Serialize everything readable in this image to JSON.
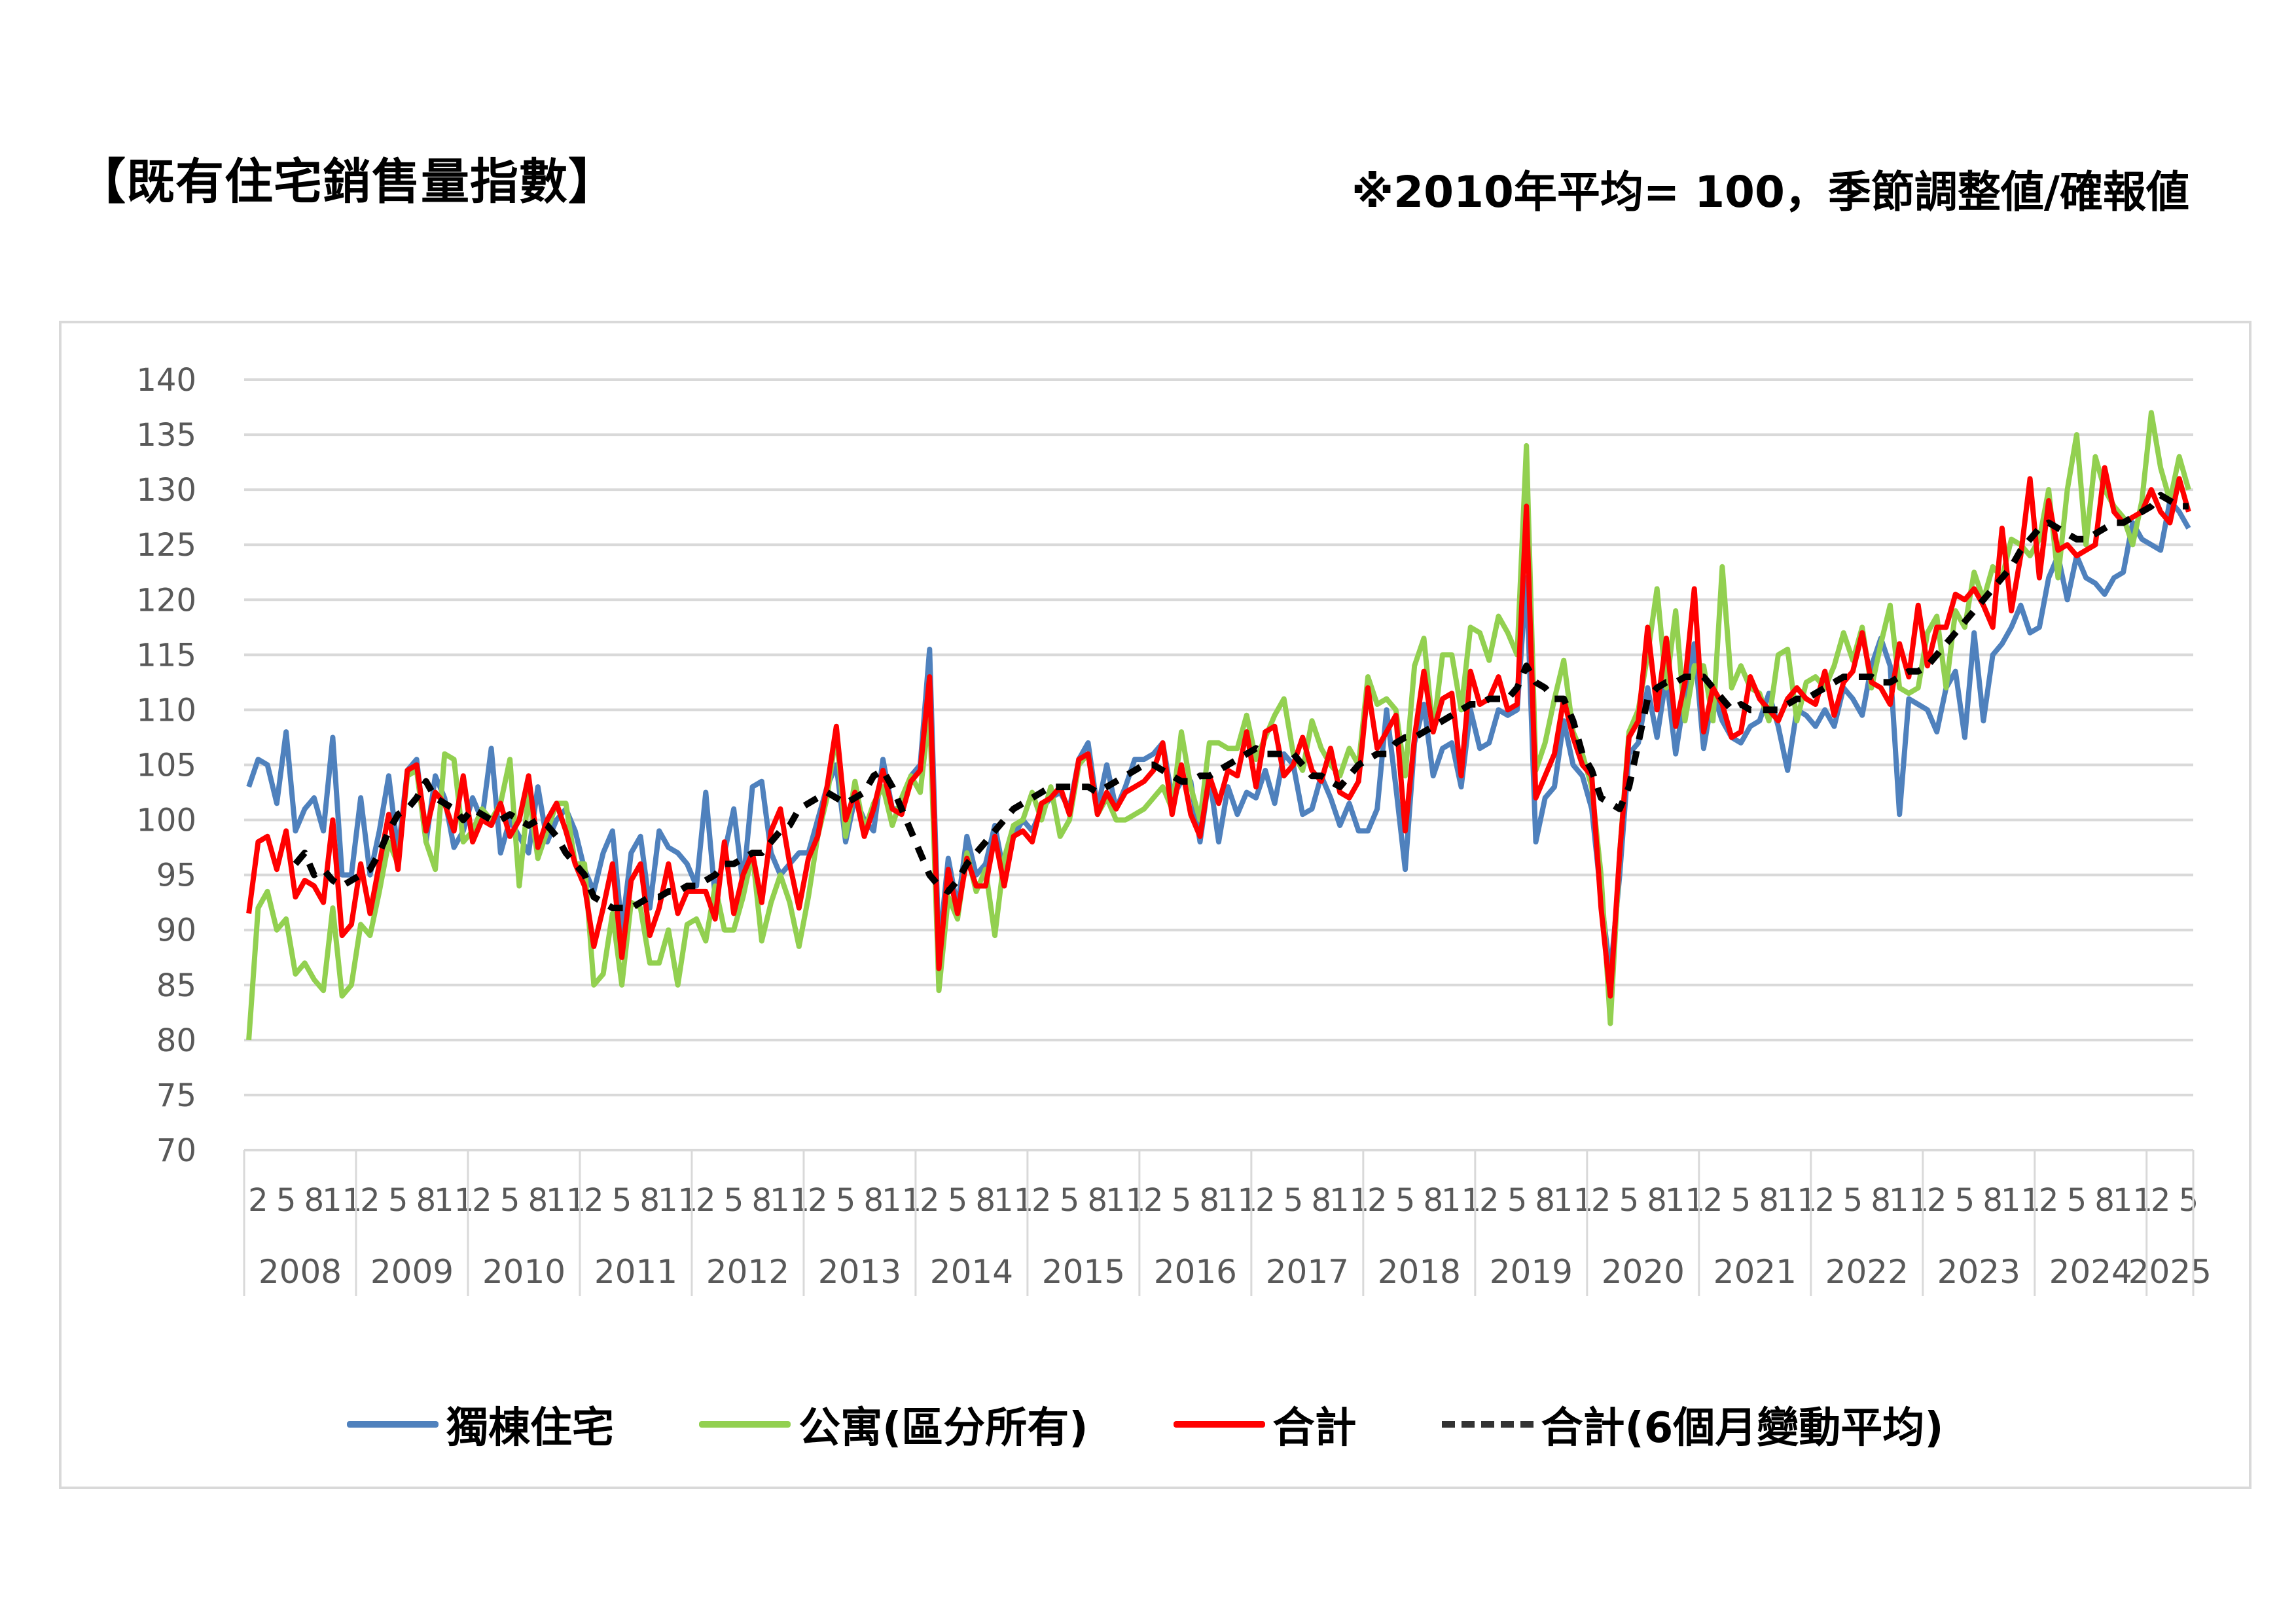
{
  "header": {
    "title": "【既有住宅銷售量指數】",
    "note": "※2010年平均= 100，季節調整値/確報値"
  },
  "chart_data": {
    "type": "line",
    "title": "既有住宅銷售量指數",
    "xlabel": "",
    "ylabel": "",
    "ylim": [
      70,
      140
    ],
    "ystep": 5,
    "grid": true,
    "legend_position": "bottom",
    "start": "2008-01",
    "end": "2025-05",
    "month_tick_labels": [
      2,
      5,
      8,
      11
    ],
    "years": [
      "2008",
      "2009",
      "2010",
      "2011",
      "2012",
      "2013",
      "2014",
      "2015",
      "2016",
      "2017",
      "2018",
      "2019",
      "2020",
      "2021",
      "2022",
      "2023",
      "2024",
      "2025"
    ],
    "series": [
      {
        "name": "獨棟住宅",
        "color": "#4f81bd",
        "dashed": false,
        "values": [
          103,
          105.5,
          105,
          101.5,
          108,
          99,
          101,
          102,
          99,
          107.5,
          95,
          95,
          102,
          95,
          99,
          104,
          97,
          104.5,
          105.5,
          98,
          104,
          102,
          97.5,
          99,
          102,
          100,
          106.5,
          97,
          100,
          98.5,
          97,
          103,
          98,
          100,
          101,
          99,
          95.5,
          93.5,
          97,
          99,
          90,
          97,
          98.5,
          92,
          99,
          97.5,
          97,
          96,
          94,
          102.5,
          93,
          97,
          101,
          94,
          103,
          103.5,
          97,
          95,
          96,
          97,
          97,
          100,
          103,
          105,
          98,
          102,
          100,
          99,
          105.5,
          101,
          101,
          104,
          105,
          115.5,
          88,
          96.5,
          92,
          98.5,
          95,
          96,
          99.5,
          95,
          98.5,
          100,
          99,
          101,
          102,
          102.5,
          101,
          105.5,
          107,
          101,
          105,
          101,
          103,
          105.5,
          105.5,
          106,
          107,
          102,
          103.5,
          103.5,
          98,
          104,
          98,
          103,
          100.5,
          102.5,
          102,
          104.5,
          101.5,
          106,
          105,
          100.5,
          101,
          104,
          102,
          99.5,
          101.5,
          99,
          99,
          101,
          110,
          103,
          95.5,
          107,
          110.5,
          104,
          106.5,
          107,
          103,
          110,
          106.5,
          107,
          110,
          109.5,
          110,
          122,
          98,
          102,
          103,
          109,
          105,
          104,
          101,
          93,
          86,
          95,
          106,
          107,
          112,
          107.5,
          113,
          106,
          111.5,
          116,
          106.5,
          111.5,
          109,
          107.5,
          107,
          108.5,
          109,
          111.5,
          108.5,
          104.5,
          110,
          109.5,
          108.5,
          110,
          108.5,
          112,
          111,
          109.5,
          114,
          116.5,
          114,
          100.5,
          111,
          110.5,
          110,
          108,
          112,
          113.5,
          107.5,
          117,
          109,
          115,
          116,
          117.5,
          119.5,
          117,
          117.5,
          122,
          124,
          120,
          124,
          122,
          121.5,
          120.5,
          122,
          122.5,
          127,
          125.5,
          125,
          124.5,
          129,
          128,
          126.5
        ]
      },
      {
        "name": "公寓(區分所有)",
        "color": "#92d050",
        "dashed": false,
        "values": [
          80,
          92,
          93.5,
          90,
          91,
          86,
          87,
          85.5,
          84.5,
          92,
          84,
          85,
          90.5,
          89.5,
          93.5,
          98,
          96,
          104,
          104.5,
          98,
          95.5,
          106,
          105.5,
          98,
          99,
          101,
          100,
          101.5,
          105.5,
          94,
          102.5,
          96.5,
          99,
          101.5,
          101.5,
          96,
          96,
          85,
          86,
          91.5,
          85,
          92.5,
          92,
          87,
          87,
          90,
          85,
          90.5,
          91,
          89,
          94,
          90,
          90,
          93,
          97,
          89,
          92.5,
          95,
          92.5,
          88.5,
          93,
          98.5,
          102,
          108,
          98.5,
          103.5,
          99,
          101.5,
          103,
          99.5,
          102,
          104,
          102.5,
          110,
          84.5,
          93,
          91,
          97,
          93.5,
          95.5,
          89.5,
          96.5,
          99.5,
          100,
          102.5,
          100,
          103,
          98.5,
          100,
          105,
          106,
          100.5,
          102,
          100,
          100,
          100.5,
          101,
          102,
          103,
          101,
          108,
          103,
          100,
          107,
          107,
          106.5,
          106.5,
          109.5,
          105.5,
          107.5,
          109.5,
          111,
          106,
          104.5,
          109,
          106.5,
          105,
          104,
          106.5,
          105,
          113,
          110.5,
          111,
          110,
          104,
          114,
          116.5,
          108,
          115,
          115,
          110,
          117.5,
          117,
          114.5,
          118.5,
          117,
          115,
          134,
          104.5,
          107,
          111,
          114.5,
          108,
          106,
          103,
          95,
          81.5,
          97,
          108,
          110,
          115,
          121,
          112,
          119,
          109,
          114,
          114,
          109,
          123,
          112,
          114,
          112,
          111.5,
          109,
          115,
          115.5,
          109,
          112.5,
          113,
          112,
          114,
          117,
          114.5,
          117.5,
          112,
          116,
          119.5,
          112,
          111.5,
          112,
          117,
          118.5,
          112,
          119,
          117.5,
          122.5,
          120,
          123,
          122,
          125.5,
          125,
          124,
          125.5,
          130,
          122,
          130,
          135,
          125,
          133,
          130,
          128.5,
          127.5,
          125,
          129,
          137,
          132,
          129,
          133,
          130
        ]
      },
      {
        "name": "合計",
        "color": "#ff0000",
        "dashed": false,
        "values": [
          91.5,
          98,
          98.5,
          95.5,
          99,
          93,
          94.5,
          94,
          92.5,
          100,
          89.5,
          90.5,
          96,
          91.5,
          96,
          100.5,
          95.5,
          104.5,
          105,
          99,
          102.5,
          101.5,
          99,
          104,
          98,
          100,
          99.5,
          101.5,
          98.5,
          100,
          104,
          97.5,
          100,
          101.5,
          99,
          96,
          94,
          88.5,
          92,
          96,
          87.5,
          94.5,
          96,
          89.5,
          92,
          96,
          91.5,
          93.5,
          93.5,
          93.5,
          91,
          98,
          91.5,
          95,
          97,
          92.5,
          99,
          101,
          96,
          92,
          96.5,
          98.5,
          103,
          108.5,
          100,
          102.5,
          98.5,
          101,
          104.5,
          101,
          100.5,
          103.5,
          104.5,
          113,
          86.5,
          95.5,
          91.5,
          96.5,
          94,
          94,
          98.5,
          94,
          98.5,
          99,
          98,
          101.5,
          102,
          103,
          100.5,
          105.5,
          106,
          100.5,
          102.5,
          101,
          102.5,
          103,
          103.5,
          104.5,
          107,
          100.5,
          105,
          100.5,
          98.5,
          104,
          101.5,
          104.5,
          104,
          108,
          103,
          108,
          108.5,
          104,
          105,
          107.5,
          104.5,
          103.5,
          106.5,
          102.5,
          102,
          103.5,
          112,
          106.5,
          108,
          109.5,
          99,
          107.5,
          113.5,
          108,
          111,
          111.5,
          104,
          113.5,
          110.5,
          111,
          113,
          110,
          110.5,
          128.5,
          102,
          104,
          106,
          111,
          107.5,
          105,
          104,
          92,
          84,
          97,
          107.5,
          109,
          117.5,
          110,
          116.5,
          108.5,
          112.5,
          121,
          108,
          112,
          110.5,
          107.5,
          108,
          113,
          111,
          110,
          109,
          111,
          112,
          111,
          110.5,
          113.5,
          109.5,
          112.5,
          113.5,
          117,
          112.5,
          112,
          110.5,
          116,
          113,
          119.5,
          114,
          117.5,
          117.5,
          120.5,
          120,
          121,
          119.5,
          117.5,
          126.5,
          119,
          124,
          131,
          122,
          129,
          124.5,
          125,
          124,
          124.5,
          125,
          132,
          128,
          127,
          127.5,
          128,
          130,
          128,
          127,
          131,
          128
        ]
      },
      {
        "name": "合計(6個月變動平均)",
        "color": "#000000",
        "dashed": true,
        "values": [
          null,
          null,
          null,
          null,
          null,
          96,
          97,
          95,
          95.5,
          94.5,
          94,
          94.5,
          95,
          95.5,
          97,
          99,
          100.5,
          101,
          102,
          103.5,
          102,
          101.5,
          101,
          100,
          101,
          100.5,
          100,
          100,
          100.5,
          100,
          99.5,
          100,
          99.5,
          98.5,
          97,
          96,
          95,
          93,
          92.5,
          92,
          92,
          92,
          92.5,
          93,
          93,
          93.5,
          93.5,
          94,
          94,
          94.5,
          95,
          96,
          96,
          96.5,
          97,
          97,
          98,
          99,
          99.5,
          101,
          101.5,
          102,
          102.5,
          102,
          101.5,
          102,
          102.5,
          104,
          104.5,
          103,
          101,
          99,
          97,
          95,
          94,
          93.5,
          94.5,
          96,
          97,
          98,
          99,
          100,
          101,
          101.5,
          102,
          102.5,
          103,
          103,
          103,
          103,
          103,
          102.5,
          103,
          103.5,
          104,
          104.5,
          105,
          105,
          104.5,
          104,
          103.5,
          103.5,
          104,
          104,
          104.5,
          105,
          105.5,
          106,
          106.5,
          106,
          106,
          106,
          106,
          105,
          104,
          104,
          103.5,
          103,
          104,
          105,
          105.5,
          106,
          106,
          107,
          107.5,
          107.5,
          108,
          108.5,
          109,
          109.5,
          110,
          110.5,
          110.5,
          111,
          111,
          111,
          112,
          114,
          112.5,
          112,
          111,
          111,
          109,
          106,
          104.5,
          102,
          101.5,
          101,
          103,
          107,
          111,
          112,
          112.5,
          112.5,
          113,
          113,
          113,
          112,
          111,
          110,
          110.5,
          110,
          110,
          110,
          110,
          110.5,
          111,
          111,
          111.5,
          112,
          112.5,
          113,
          113,
          113,
          113,
          112.5,
          112.5,
          113,
          113.5,
          113.5,
          114,
          115,
          116,
          117,
          118,
          119,
          120,
          121,
          122,
          123,
          124.5,
          125.5,
          126.5,
          127,
          126.5,
          126,
          125.5,
          125.5,
          126,
          126.5,
          127,
          127,
          127.5,
          128,
          128.5,
          129.5,
          129,
          128.5,
          128.5
        ]
      }
    ]
  }
}
